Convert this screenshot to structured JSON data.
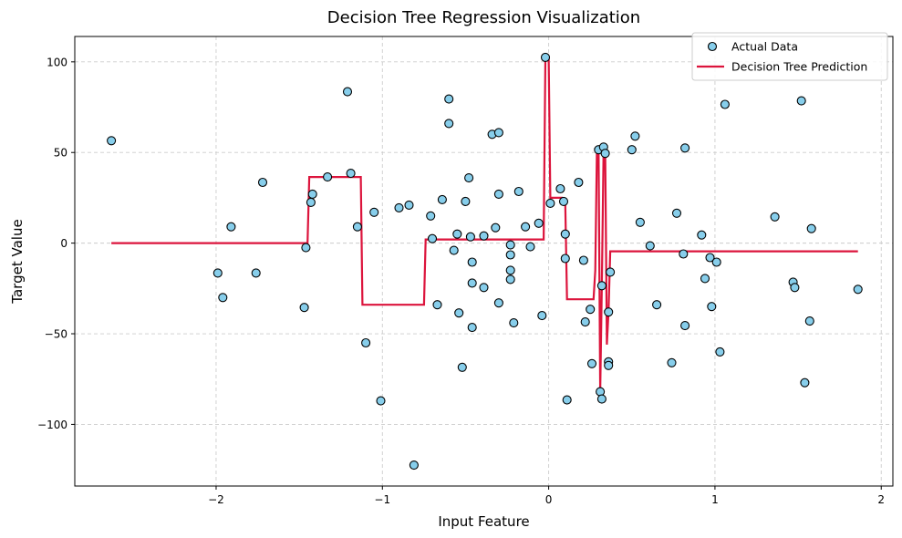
{
  "chart_data": {
    "type": "scatter",
    "title": "Decision Tree Regression Visualization",
    "xlabel": "Input Feature",
    "ylabel": "Target Value",
    "xlim": [
      -2.85,
      2.07
    ],
    "ylim": [
      -134,
      114
    ],
    "xticks": [
      -2,
      -1,
      0,
      1,
      2
    ],
    "yticks": [
      -100,
      -50,
      0,
      50,
      100
    ],
    "xtick_labels": [
      "−2",
      "−1",
      "0",
      "1",
      "2"
    ],
    "ytick_labels": [
      "−100",
      "−50",
      "0",
      "50",
      "100"
    ],
    "grid": true,
    "legend_position": "top-right",
    "colors": {
      "scatter_fill": "#87CEEB",
      "scatter_edge": "#000000",
      "line": "#DC143C",
      "grid": "#cccccc"
    },
    "series": [
      {
        "name": "Actual Data",
        "kind": "scatter",
        "points": [
          [
            -2.63,
            56.5
          ],
          [
            -1.99,
            -16.5
          ],
          [
            -1.96,
            -30.0
          ],
          [
            -1.91,
            9.0
          ],
          [
            -1.76,
            -16.5
          ],
          [
            -1.72,
            33.5
          ],
          [
            -1.47,
            -35.5
          ],
          [
            -1.46,
            -2.5
          ],
          [
            -1.43,
            22.5
          ],
          [
            -1.42,
            27.0
          ],
          [
            -1.33,
            36.5
          ],
          [
            -1.21,
            83.5
          ],
          [
            -1.19,
            38.5
          ],
          [
            -1.15,
            9.0
          ],
          [
            -1.1,
            -55.0
          ],
          [
            -1.05,
            17.0
          ],
          [
            -1.01,
            -87.0
          ],
          [
            -0.9,
            19.5
          ],
          [
            -0.84,
            21.0
          ],
          [
            -0.81,
            -122.5
          ],
          [
            -0.71,
            15.0
          ],
          [
            -0.7,
            2.5
          ],
          [
            -0.67,
            -34.0
          ],
          [
            -0.64,
            24.0
          ],
          [
            -0.6,
            79.5
          ],
          [
            -0.6,
            66.0
          ],
          [
            -0.57,
            -4.0
          ],
          [
            -0.55,
            5.0
          ],
          [
            -0.54,
            -38.5
          ],
          [
            -0.52,
            -68.5
          ],
          [
            -0.5,
            23.0
          ],
          [
            -0.48,
            36.0
          ],
          [
            -0.47,
            3.5
          ],
          [
            -0.46,
            -10.5
          ],
          [
            -0.46,
            -22.0
          ],
          [
            -0.46,
            -46.5
          ],
          [
            -0.39,
            -24.5
          ],
          [
            -0.39,
            4.0
          ],
          [
            -0.34,
            60.0
          ],
          [
            -0.32,
            8.5
          ],
          [
            -0.3,
            61.0
          ],
          [
            -0.3,
            27.0
          ],
          [
            -0.3,
            -33.0
          ],
          [
            -0.23,
            -20.0
          ],
          [
            -0.23,
            -15.0
          ],
          [
            -0.23,
            -6.5
          ],
          [
            -0.23,
            -1.0
          ],
          [
            -0.21,
            -44.0
          ],
          [
            -0.18,
            28.5
          ],
          [
            -0.14,
            9.0
          ],
          [
            -0.11,
            -2.0
          ],
          [
            -0.06,
            11.0
          ],
          [
            -0.04,
            -40.0
          ],
          [
            -0.02,
            102.5
          ],
          [
            0.01,
            22.0
          ],
          [
            0.07,
            30.0
          ],
          [
            0.09,
            23.0
          ],
          [
            0.1,
            5.0
          ],
          [
            0.1,
            -8.5
          ],
          [
            0.11,
            -86.5
          ],
          [
            0.18,
            33.5
          ],
          [
            0.21,
            -9.5
          ],
          [
            0.22,
            -43.5
          ],
          [
            0.25,
            -36.5
          ],
          [
            0.26,
            -66.5
          ],
          [
            0.3,
            51.5
          ],
          [
            0.31,
            -82.0
          ],
          [
            0.32,
            -86.0
          ],
          [
            0.32,
            -23.5
          ],
          [
            0.33,
            53.0
          ],
          [
            0.34,
            49.5
          ],
          [
            0.36,
            -65.5
          ],
          [
            0.36,
            -67.5
          ],
          [
            0.36,
            -38.0
          ],
          [
            0.37,
            -16.0
          ],
          [
            0.5,
            51.5
          ],
          [
            0.52,
            59.0
          ],
          [
            0.55,
            11.5
          ],
          [
            0.61,
            -1.5
          ],
          [
            0.65,
            -34.0
          ],
          [
            0.74,
            -66.0
          ],
          [
            0.77,
            16.5
          ],
          [
            0.81,
            -6.0
          ],
          [
            0.82,
            -45.5
          ],
          [
            0.82,
            52.5
          ],
          [
            0.92,
            4.5
          ],
          [
            0.94,
            -19.5
          ],
          [
            0.97,
            -8.0
          ],
          [
            0.98,
            -35.0
          ],
          [
            1.01,
            -10.5
          ],
          [
            1.03,
            -60.0
          ],
          [
            1.06,
            76.5
          ],
          [
            1.36,
            14.5
          ],
          [
            1.47,
            -21.5
          ],
          [
            1.48,
            -24.5
          ],
          [
            1.52,
            78.5
          ],
          [
            1.54,
            -77.0
          ],
          [
            1.57,
            -43.0
          ],
          [
            1.58,
            8.0
          ],
          [
            1.86,
            -25.5
          ]
        ]
      },
      {
        "name": "Decision Tree Prediction",
        "kind": "line",
        "points": [
          [
            -2.63,
            0
          ],
          [
            -1.45,
            0
          ],
          [
            -1.44,
            36.5
          ],
          [
            -1.13,
            36.5
          ],
          [
            -1.12,
            -34.0
          ],
          [
            -0.75,
            -34.0
          ],
          [
            -0.74,
            2.0
          ],
          [
            -0.03,
            2.0
          ],
          [
            -0.02,
            102.5
          ],
          [
            0.0,
            102.5
          ],
          [
            0.01,
            25.0
          ],
          [
            0.08,
            25.0
          ],
          [
            0.09,
            21.5
          ],
          [
            0.1,
            21.5
          ],
          [
            0.11,
            -31.0
          ],
          [
            0.27,
            -31.0
          ],
          [
            0.28,
            -15.0
          ],
          [
            0.29,
            52.0
          ],
          [
            0.3,
            51.5
          ],
          [
            0.31,
            -82.0
          ],
          [
            0.32,
            -23.0
          ],
          [
            0.33,
            51.0
          ],
          [
            0.34,
            49.5
          ],
          [
            0.35,
            -56.0
          ],
          [
            0.36,
            -38.0
          ],
          [
            0.37,
            -4.5
          ],
          [
            1.86,
            -4.5
          ]
        ]
      }
    ]
  }
}
